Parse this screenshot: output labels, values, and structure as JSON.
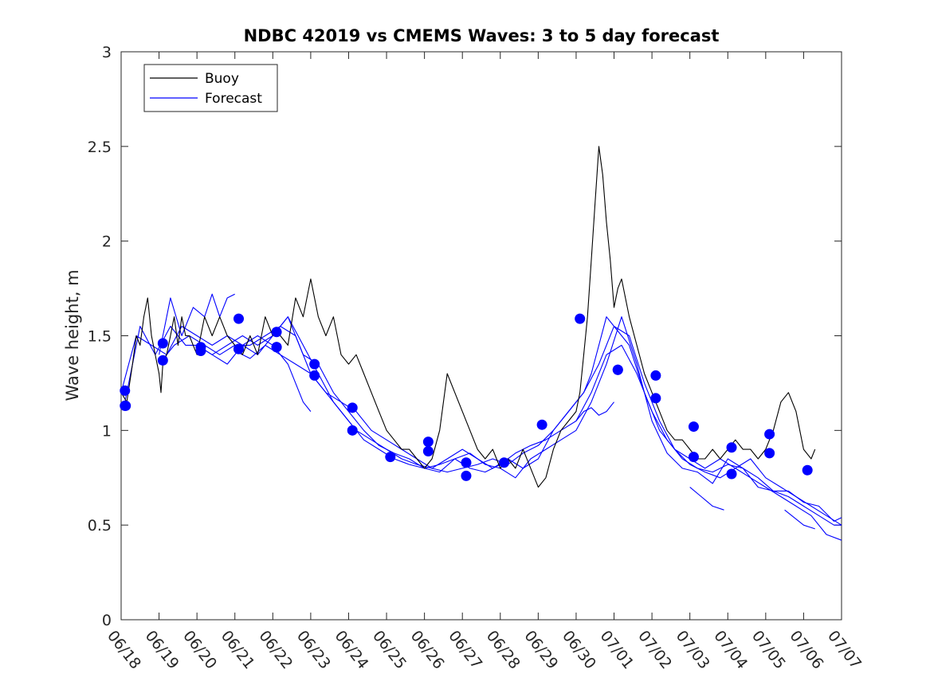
{
  "chart_data": {
    "type": "line",
    "title": "NDBC 42019 vs CMEMS Waves: 3 to 5 day forecast",
    "xlabel": "",
    "ylabel": "Wave height, m",
    "xlim": [
      0,
      19
    ],
    "ylim": [
      0,
      3
    ],
    "yticks": [
      0,
      0.5,
      1,
      1.5,
      2,
      2.5,
      3
    ],
    "ytick_labels": [
      "0",
      "0.5",
      "1",
      "1.5",
      "2",
      "2.5",
      "3"
    ],
    "xtick_labels": [
      "06/18",
      "06/19",
      "06/20",
      "06/21",
      "06/22",
      "06/23",
      "06/24",
      "06/25",
      "06/26",
      "06/27",
      "06/28",
      "06/29",
      "06/30",
      "07/01",
      "07/02",
      "07/03",
      "07/04",
      "07/05",
      "07/06",
      "07/07"
    ],
    "legend": {
      "position": "top-left",
      "entries": [
        "Buoy",
        "Forecast"
      ]
    },
    "grid": false,
    "colors": {
      "buoy": "#000000",
      "forecast": "#0000ff"
    },
    "buoy": {
      "name": "Buoy",
      "x": [
        0.0,
        0.15,
        0.3,
        0.4,
        0.5,
        0.6,
        0.7,
        0.8,
        0.9,
        1.0,
        1.05,
        1.1,
        1.2,
        1.3,
        1.4,
        1.5,
        1.6,
        1.7,
        1.8,
        2.0,
        2.2,
        2.4,
        2.6,
        2.8,
        3.0,
        3.2,
        3.4,
        3.6,
        3.8,
        4.0,
        4.2,
        4.4,
        4.6,
        4.8,
        5.0,
        5.2,
        5.4,
        5.6,
        5.8,
        6.0,
        6.2,
        6.4,
        6.6,
        6.8,
        7.0,
        7.2,
        7.4,
        7.6,
        7.8,
        8.0,
        8.2,
        8.4,
        8.6,
        8.8,
        9.0,
        9.2,
        9.4,
        9.6,
        9.8,
        10.0,
        10.2,
        10.4,
        10.6,
        10.8,
        11.0,
        11.2,
        11.4,
        11.6,
        11.8,
        12.0,
        12.1,
        12.2,
        12.3,
        12.4,
        12.5,
        12.6,
        12.7,
        12.8,
        12.9,
        13.0,
        13.1,
        13.2,
        13.3,
        13.4,
        13.6,
        13.8,
        14.0,
        14.2,
        14.4,
        14.6,
        14.8,
        15.0,
        15.2,
        15.4,
        15.6,
        15.8,
        16.0,
        16.2,
        16.4,
        16.6,
        16.8,
        17.0,
        17.2,
        17.4,
        17.6,
        17.8,
        18.0,
        18.2,
        18.3
      ],
      "values": [
        1.2,
        1.15,
        1.35,
        1.5,
        1.45,
        1.6,
        1.7,
        1.5,
        1.4,
        1.3,
        1.2,
        1.35,
        1.4,
        1.5,
        1.6,
        1.45,
        1.6,
        1.5,
        1.5,
        1.4,
        1.6,
        1.5,
        1.6,
        1.5,
        1.45,
        1.4,
        1.5,
        1.4,
        1.6,
        1.5,
        1.5,
        1.45,
        1.7,
        1.6,
        1.8,
        1.6,
        1.5,
        1.6,
        1.4,
        1.35,
        1.4,
        1.3,
        1.2,
        1.1,
        1.0,
        0.95,
        0.9,
        0.9,
        0.85,
        0.8,
        0.85,
        1.0,
        1.3,
        1.2,
        1.1,
        1.0,
        0.9,
        0.85,
        0.9,
        0.8,
        0.85,
        0.8,
        0.9,
        0.8,
        0.7,
        0.75,
        0.9,
        1.0,
        1.05,
        1.1,
        1.2,
        1.4,
        1.6,
        1.9,
        2.2,
        2.5,
        2.35,
        2.1,
        1.9,
        1.65,
        1.75,
        1.8,
        1.7,
        1.6,
        1.45,
        1.3,
        1.2,
        1.1,
        1.0,
        0.95,
        0.95,
        0.9,
        0.85,
        0.85,
        0.9,
        0.85,
        0.9,
        0.95,
        0.9,
        0.9,
        0.85,
        0.9,
        1.0,
        1.15,
        1.2,
        1.1,
        0.9,
        0.85,
        0.9
      ]
    },
    "forecast_series": [
      {
        "x": [
          0.0,
          0.4,
          0.8,
          1.2,
          1.6,
          2.0,
          2.4,
          2.8,
          3.2,
          3.6,
          4.0,
          4.4,
          4.8,
          5.0
        ],
        "values": [
          1.2,
          1.5,
          1.45,
          1.4,
          1.55,
          1.5,
          1.45,
          1.5,
          1.45,
          1.5,
          1.45,
          1.35,
          1.15,
          1.1
        ]
      },
      {
        "x": [
          1.0,
          1.4,
          1.8,
          2.2,
          2.6,
          3.0,
          3.4,
          3.8,
          4.2,
          4.6,
          5.0,
          5.4,
          5.8,
          6.2,
          6.6,
          7.0,
          7.4,
          7.8,
          8.2,
          8.6,
          9.0,
          9.4,
          9.8,
          10.2,
          10.6,
          11.0,
          11.4,
          11.8,
          12.2,
          12.4,
          12.6,
          12.8,
          13.0,
          13.4,
          13.8,
          14.2,
          14.6,
          15.0,
          15.4,
          15.8,
          16.2,
          16.6,
          17.0,
          17.4,
          17.8,
          18.2,
          18.6,
          19.0
        ],
        "values": [
          1.35,
          1.45,
          1.5,
          1.45,
          1.4,
          1.45,
          1.45,
          1.5,
          1.55,
          1.5,
          1.3,
          1.2,
          1.15,
          1.1,
          1.0,
          0.95,
          0.9,
          0.85,
          0.8,
          0.85,
          0.9,
          0.85,
          0.8,
          0.85,
          0.8,
          0.85,
          1.0,
          1.1,
          1.2,
          1.3,
          1.45,
          1.6,
          1.55,
          1.45,
          1.2,
          1.0,
          0.9,
          0.85,
          0.8,
          0.85,
          0.8,
          0.85,
          0.75,
          0.7,
          0.65,
          0.6,
          0.55,
          0.5
        ]
      },
      {
        "x": [
          2.0,
          2.4,
          2.8,
          3.2,
          3.6,
          4.0,
          4.4,
          4.8,
          5.2,
          5.6,
          6.0,
          6.4,
          6.8,
          7.2,
          7.6,
          8.0,
          8.4,
          8.8,
          9.2,
          9.6,
          10.0,
          10.4,
          10.8,
          11.2,
          11.6,
          12.0,
          12.4,
          12.8,
          13.2,
          13.6,
          14.0,
          14.4,
          14.8,
          15.2,
          15.6,
          16.0,
          16.4,
          16.8,
          17.2,
          17.6,
          18.0,
          18.4,
          18.8,
          19.0
        ],
        "values": [
          1.45,
          1.4,
          1.45,
          1.5,
          1.45,
          1.5,
          1.6,
          1.4,
          1.35,
          1.2,
          1.1,
          1.0,
          0.92,
          0.88,
          0.85,
          0.8,
          0.82,
          0.85,
          0.8,
          0.78,
          0.82,
          0.88,
          0.92,
          0.95,
          1.0,
          1.05,
          1.2,
          1.4,
          1.45,
          1.3,
          1.1,
          0.95,
          0.85,
          0.8,
          0.78,
          0.82,
          0.8,
          0.7,
          0.68,
          0.65,
          0.6,
          0.55,
          0.5,
          0.5
        ]
      },
      {
        "x": [
          3.0,
          3.4,
          3.8,
          4.2,
          4.6,
          5.0,
          5.4,
          5.8,
          6.2,
          6.6,
          7.0,
          7.4,
          7.8,
          8.2,
          8.6,
          9.0,
          9.4,
          9.8,
          10.2,
          10.6,
          11.0,
          11.4,
          11.8,
          12.2,
          12.6,
          13.0,
          13.4,
          13.8,
          14.2,
          14.6,
          15.0,
          15.4,
          15.8,
          16.2,
          16.6,
          17.0,
          17.4,
          17.8,
          18.2,
          18.6,
          19.0
        ],
        "values": [
          1.42,
          1.38,
          1.45,
          1.4,
          1.35,
          1.3,
          1.2,
          1.1,
          1.0,
          0.95,
          0.9,
          0.85,
          0.82,
          0.8,
          0.78,
          0.8,
          0.82,
          0.85,
          0.82,
          0.88,
          0.92,
          1.0,
          1.1,
          1.2,
          1.35,
          1.55,
          1.5,
          1.25,
          1.05,
          0.9,
          0.82,
          0.78,
          0.75,
          0.8,
          0.75,
          0.7,
          0.65,
          0.6,
          0.55,
          0.45,
          0.42
        ]
      },
      {
        "x": [
          0.1,
          0.5,
          0.9,
          1.3,
          1.7,
          2.0,
          2.4,
          2.8,
          3.2,
          3.6,
          4.0,
          4.4,
          4.8,
          5.2,
          5.6,
          6.0,
          6.4,
          6.8,
          7.2,
          7.6,
          8.0,
          8.4,
          8.8,
          9.2,
          9.6,
          10.0,
          10.4,
          10.8,
          11.2,
          11.6,
          12.0,
          12.4,
          12.8,
          13.2,
          13.6,
          14.0,
          14.4,
          14.8,
          15.2,
          15.6,
          16.0,
          16.4,
          16.8,
          17.2,
          17.6,
          18.0,
          18.4,
          18.8,
          19.0
        ],
        "values": [
          1.15,
          1.55,
          1.4,
          1.55,
          1.45,
          1.45,
          1.4,
          1.35,
          1.45,
          1.4,
          1.5,
          1.6,
          1.45,
          1.3,
          1.15,
          1.05,
          0.95,
          0.9,
          0.85,
          0.82,
          0.8,
          0.78,
          0.85,
          0.88,
          0.82,
          0.8,
          0.75,
          0.85,
          0.9,
          0.95,
          1.0,
          1.15,
          1.35,
          1.6,
          1.35,
          1.05,
          0.88,
          0.8,
          0.78,
          0.72,
          0.85,
          0.8,
          0.75,
          0.68,
          0.68,
          0.62,
          0.6,
          0.52,
          0.54
        ]
      },
      {
        "x": [
          1.0,
          1.3,
          1.6,
          1.9,
          2.2,
          2.4,
          2.6,
          2.8,
          3.0
        ],
        "values": [
          1.4,
          1.7,
          1.5,
          1.65,
          1.6,
          1.72,
          1.6,
          1.7,
          1.72
        ]
      },
      {
        "x": [
          12.0,
          12.2,
          12.4,
          12.6,
          12.8,
          13.0
        ],
        "values": [
          1.05,
          1.1,
          1.12,
          1.08,
          1.1,
          1.15
        ]
      },
      {
        "x": [
          15.0,
          15.3,
          15.6,
          15.9
        ],
        "values": [
          0.7,
          0.65,
          0.6,
          0.58
        ]
      },
      {
        "x": [
          17.5,
          18.0,
          18.3
        ],
        "values": [
          0.58,
          0.5,
          0.48
        ]
      }
    ],
    "forecast_markers": {
      "x": [
        0.1,
        0.12,
        0.1,
        1.1,
        1.1,
        2.1,
        2.1,
        3.1,
        3.1,
        3.1,
        4.1,
        4.1,
        4.1,
        5.1,
        5.1,
        6.1,
        6.1,
        7.1,
        8.1,
        8.1,
        9.1,
        9.1,
        10.1,
        11.1,
        12.1,
        13.1,
        13.1,
        14.1,
        14.1,
        15.1,
        15.1,
        16.1,
        16.1,
        17.1,
        17.1,
        18.1
      ],
      "values": [
        1.21,
        1.13,
        1.13,
        1.46,
        1.37,
        1.44,
        1.42,
        1.59,
        1.43,
        1.43,
        1.52,
        1.44,
        1.44,
        1.35,
        1.29,
        1.12,
        1.0,
        0.86,
        0.94,
        0.89,
        0.83,
        0.76,
        0.83,
        1.03,
        1.59,
        1.32,
        1.32,
        1.29,
        1.17,
        1.02,
        0.86,
        0.91,
        0.77,
        0.98,
        0.88,
        0.79
      ]
    }
  }
}
